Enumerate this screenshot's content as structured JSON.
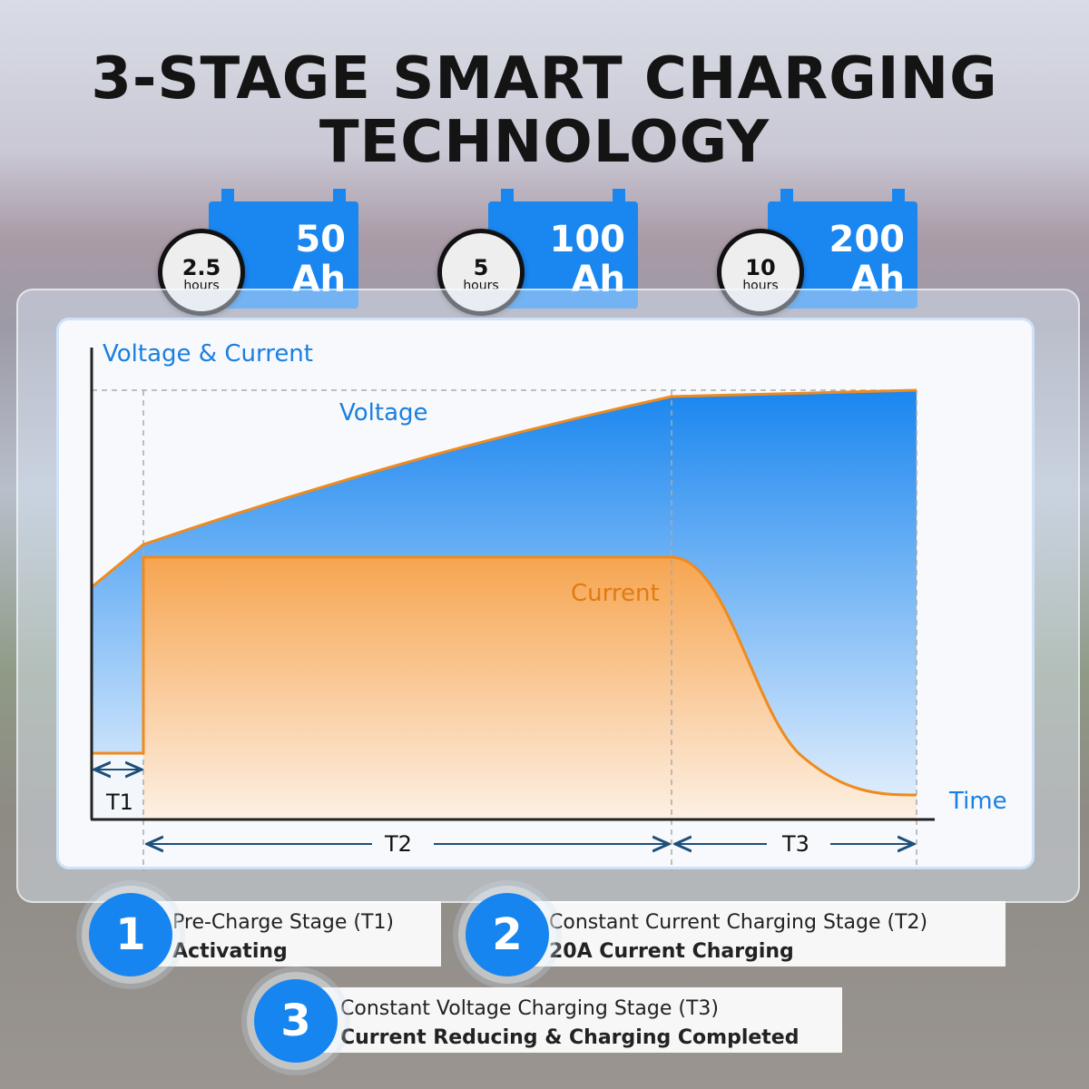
{
  "title": {
    "line1": "3-STAGE SMART CHARGING",
    "line2": "TECHNOLOGY"
  },
  "badges": [
    {
      "time": "2.5",
      "unit": "hours",
      "capacity": "50",
      "capacity_unit": "Ah"
    },
    {
      "time": "5",
      "unit": "hours",
      "capacity": "100",
      "capacity_unit": "Ah"
    },
    {
      "time": "10",
      "unit": "hours",
      "capacity": "200",
      "capacity_unit": "Ah"
    }
  ],
  "diagram": {
    "y_axis_label": "Voltage & Current",
    "x_axis_label": "Time",
    "voltage_label": "Voltage",
    "current_label": "Current",
    "stages": [
      "T1",
      "T2",
      "T3"
    ],
    "colors": {
      "voltage": "#1a86ef",
      "current": "#f5901f"
    }
  },
  "stages": [
    {
      "number": "1",
      "title": "Pre-Charge Stage (T1)",
      "subtitle": "Activating"
    },
    {
      "number": "2",
      "title": "Constant Current Charging Stage (T2)",
      "subtitle": "20A Current Charging"
    },
    {
      "number": "3",
      "title": "Constant Voltage Charging Stage (T3)",
      "subtitle": "Current Reducing & Charging Completed"
    }
  ]
}
